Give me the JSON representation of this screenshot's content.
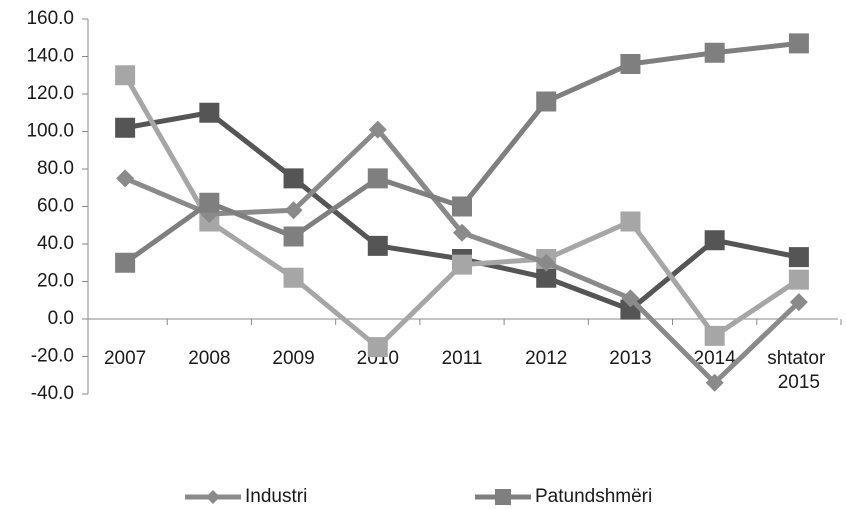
{
  "chart_data": {
    "type": "line",
    "categories": [
      "2007",
      "2008",
      "2009",
      "2010",
      "2011",
      "2012",
      "2013",
      "2014",
      "shtator 2015"
    ],
    "series": [
      {
        "color": "#555555",
        "marker": "square",
        "values": [
          102,
          110,
          75,
          39,
          32,
          22,
          5,
          42,
          33
        ]
      },
      {
        "color": "#a6a6a6",
        "marker": "square",
        "values": [
          130,
          52,
          22,
          -15,
          29,
          32,
          52,
          -9,
          21
        ]
      },
      {
        "name": "Industri",
        "color": "#8a8a8a",
        "marker": "diamond",
        "values": [
          75,
          56,
          58,
          101,
          46,
          30,
          11,
          -34,
          9
        ]
      },
      {
        "name": "Patundshmëri",
        "color": "#7f7f7f",
        "marker": "square",
        "values": [
          30,
          62,
          44,
          75,
          60,
          116,
          136,
          142,
          147
        ]
      }
    ],
    "ylim": [
      -40,
      160
    ],
    "yticks": [
      {
        "value": -40,
        "label": "-40.0"
      },
      {
        "value": -20,
        "label": "-20.0"
      },
      {
        "value": 0,
        "label": "0.0"
      },
      {
        "value": 20,
        "label": "20.0"
      },
      {
        "value": 40,
        "label": "40.0"
      },
      {
        "value": 60,
        "label": "60.0"
      },
      {
        "value": 80,
        "label": "80.0"
      },
      {
        "value": 100,
        "label": "100.0"
      },
      {
        "value": 120,
        "label": "120.0"
      },
      {
        "value": 140,
        "label": "140.0"
      },
      {
        "value": 160,
        "label": "160.0"
      }
    ],
    "grid": false,
    "legend": "bottom"
  }
}
